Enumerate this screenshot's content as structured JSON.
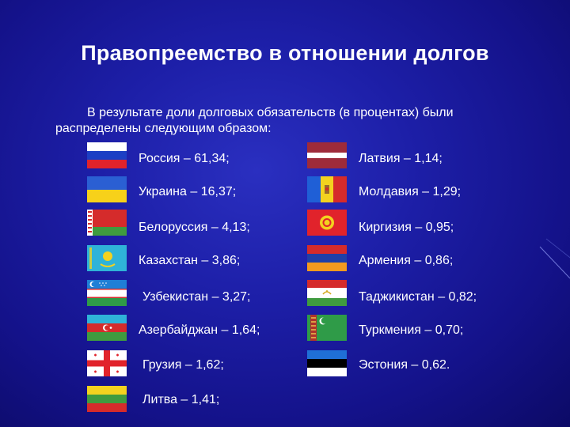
{
  "slide": {
    "title": "Правопреемство в отношении долгов",
    "intro_line1": "В результате доли долговых обязательств (в процентах) были",
    "intro_line2": "распределены следующим образом:"
  },
  "countries": {
    "russia": "Россия – 61,34;",
    "ukraine": "Украина – 16,37;",
    "belarus": "Белоруссия – 4,13;",
    "kazakhstan": "Казахстан – 3,86;",
    "uzbekistan": "Узбекистан – 3,27;",
    "azerbaijan": "Азербайджан – 1,64;",
    "georgia": "Грузия – 1,62;",
    "lithuania": "Литва – 1,41;",
    "latvia": "Латвия – 1,14;",
    "moldova": "Молдавия – 1,29;",
    "kyrgyzstan": "Киргизия – 0,95;",
    "armenia": "Армения – 0,86;",
    "tajikistan": "Таджикистан – 0,82;",
    "turkmenistan": "Туркмения – 0,70;",
    "estonia": "Эстония – 0,62."
  },
  "colors": {
    "background": "#1d1fa8",
    "text": "#ffffff"
  }
}
